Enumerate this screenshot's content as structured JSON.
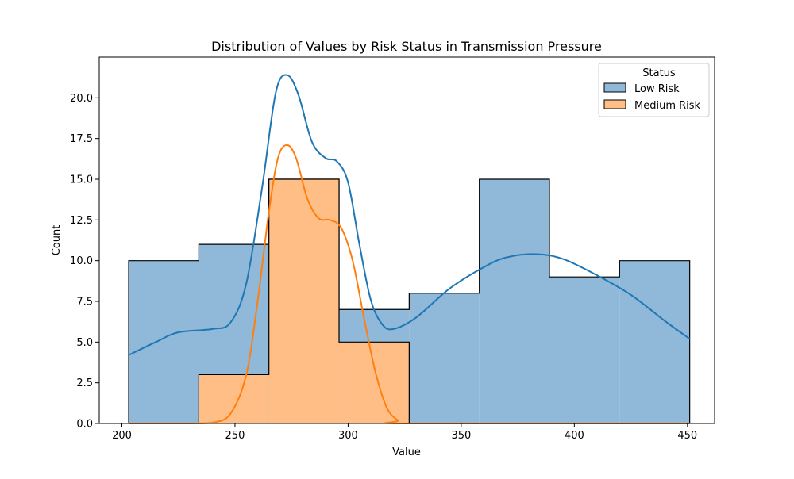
{
  "chart_data": {
    "type": "histogram",
    "title": "Distribution of Values by Risk Status in Transmission Pressure",
    "xlabel": "Value",
    "ylabel": "Count",
    "xlim": [
      190,
      462
    ],
    "ylim": [
      0,
      22.5
    ],
    "x_ticks": [
      200,
      250,
      300,
      350,
      400,
      450
    ],
    "x_tick_labels": [
      "200",
      "250",
      "300",
      "350",
      "400",
      "450"
    ],
    "y_ticks": [
      0,
      2.5,
      5,
      7.5,
      10,
      12.5,
      15,
      17.5,
      20
    ],
    "y_tick_labels": [
      "0.0",
      "2.5",
      "5.0",
      "7.5",
      "10.0",
      "12.5",
      "15.0",
      "17.5",
      "20.0"
    ],
    "grid": false,
    "legend": {
      "title": "Status",
      "placement": "top-right",
      "entries": [
        "Low Risk",
        "Medium Risk"
      ]
    },
    "series": [
      {
        "name": "Low Risk",
        "color": "#1f77b4",
        "fill": "#8fb8d9",
        "bins": [
          {
            "x0": 203,
            "x1": 234,
            "count": 10
          },
          {
            "x0": 234,
            "x1": 265,
            "count": 11
          },
          {
            "x0": 265,
            "x1": 296,
            "count": 15
          },
          {
            "x0": 296,
            "x1": 327,
            "count": 7
          },
          {
            "x0": 327,
            "x1": 358,
            "count": 8
          },
          {
            "x0": 358,
            "x1": 389,
            "count": 15
          },
          {
            "x0": 389,
            "x1": 420,
            "count": 9
          },
          {
            "x0": 420,
            "x1": 451,
            "count": 10
          }
        ],
        "kde": [
          [
            203,
            4.2
          ],
          [
            215,
            5.0
          ],
          [
            225,
            5.6
          ],
          [
            240,
            5.8
          ],
          [
            248,
            6.2
          ],
          [
            255,
            8.6
          ],
          [
            262,
            14.5
          ],
          [
            268,
            20.3
          ],
          [
            273,
            21.4
          ],
          [
            278,
            20.2
          ],
          [
            284,
            17.3
          ],
          [
            290,
            16.3
          ],
          [
            295,
            16.1
          ],
          [
            300,
            14.8
          ],
          [
            305,
            11.0
          ],
          [
            310,
            7.6
          ],
          [
            315,
            6.1
          ],
          [
            320,
            5.8
          ],
          [
            330,
            6.5
          ],
          [
            345,
            8.3
          ],
          [
            360,
            9.6
          ],
          [
            370,
            10.2
          ],
          [
            383,
            10.4
          ],
          [
            395,
            10.1
          ],
          [
            410,
            9.1
          ],
          [
            425,
            7.9
          ],
          [
            440,
            6.3
          ],
          [
            451,
            5.2
          ]
        ]
      },
      {
        "name": "Medium Risk",
        "color": "#ff7f0e",
        "fill": "#ffbe86",
        "bins": [
          {
            "x0": 234,
            "x1": 265,
            "count": 3
          },
          {
            "x0": 265,
            "x1": 296,
            "count": 15
          },
          {
            "x0": 296,
            "x1": 327,
            "count": 5
          }
        ],
        "kde": [
          [
            203,
            0
          ],
          [
            230,
            0
          ],
          [
            240,
            0.05
          ],
          [
            248,
            0.6
          ],
          [
            255,
            3.0
          ],
          [
            260,
            7.5
          ],
          [
            265,
            13.0
          ],
          [
            269,
            16.3
          ],
          [
            273,
            17.1
          ],
          [
            277,
            16.3
          ],
          [
            282,
            13.8
          ],
          [
            287,
            12.6
          ],
          [
            292,
            12.5
          ],
          [
            297,
            12.0
          ],
          [
            302,
            10.0
          ],
          [
            307,
            6.5
          ],
          [
            312,
            3.2
          ],
          [
            317,
            1.0
          ],
          [
            322,
            0.2
          ],
          [
            327,
            0
          ],
          [
            451,
            0
          ]
        ]
      }
    ]
  }
}
